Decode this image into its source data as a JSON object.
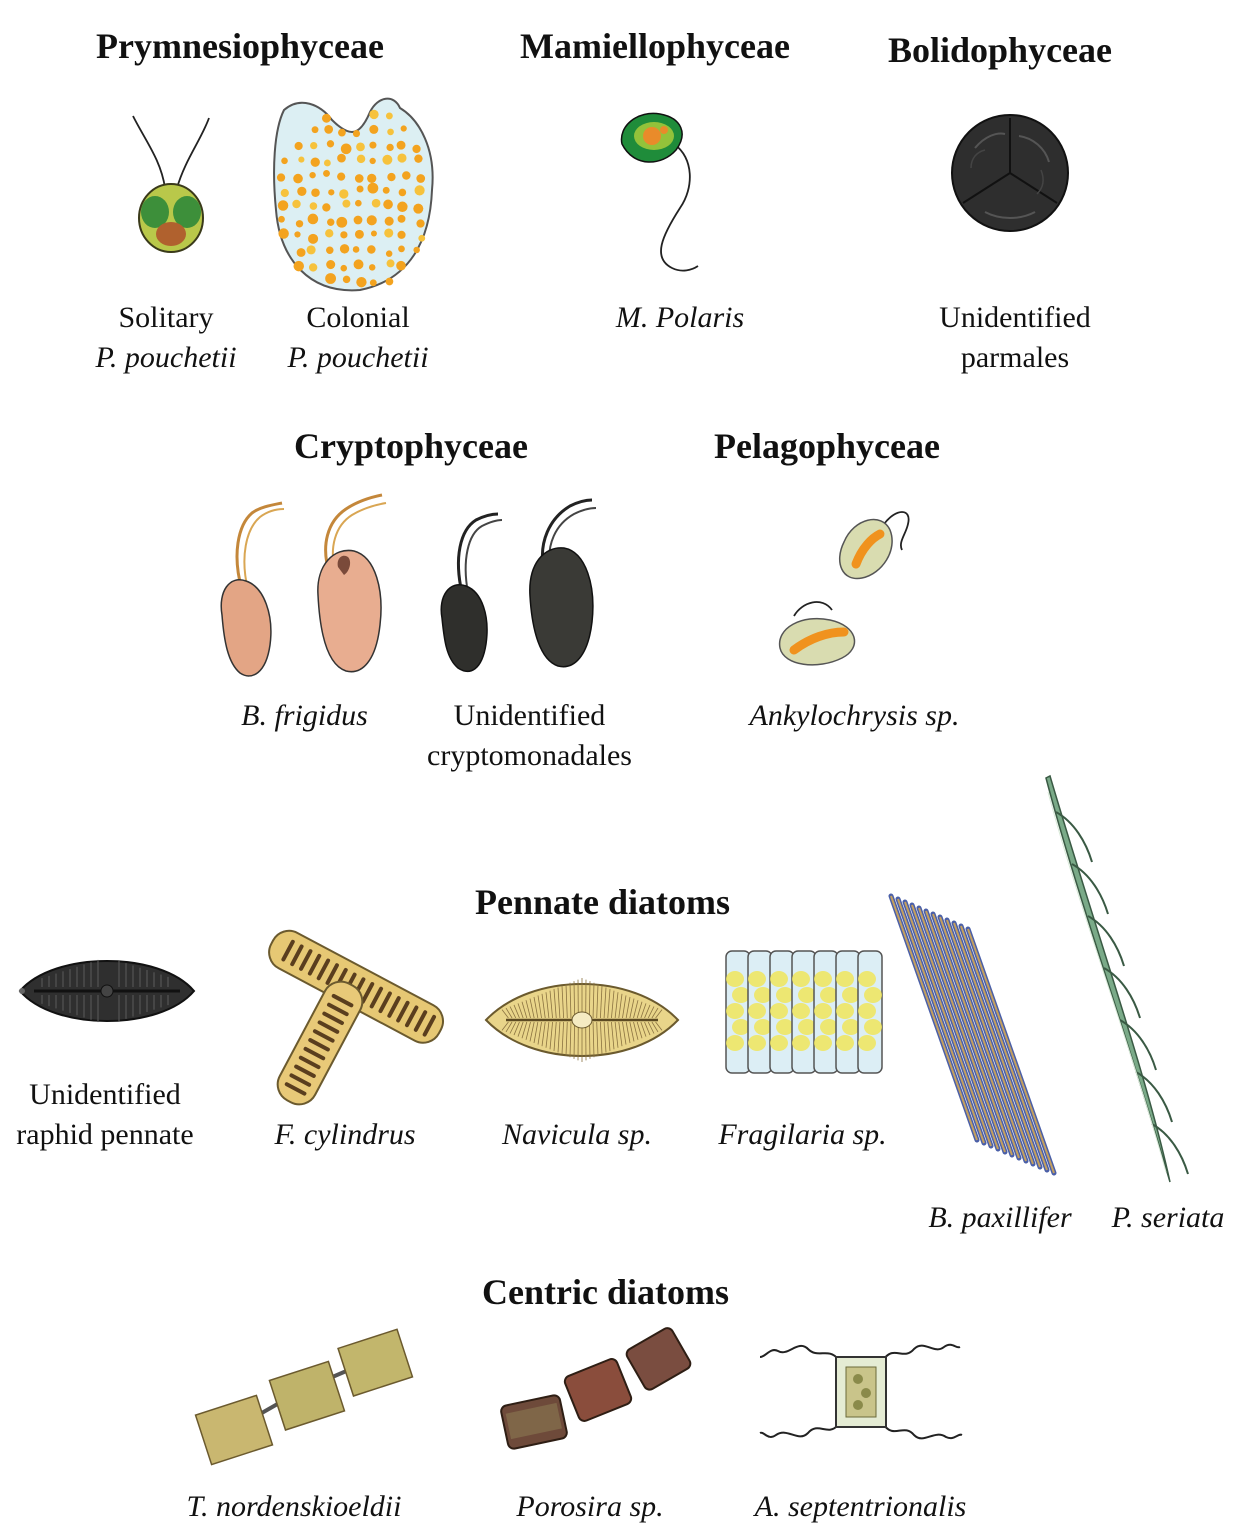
{
  "headings": {
    "prymnesiophyceae": "Prymnesiophyceae",
    "mamiellophyceae": "Mamiellophyceae",
    "bolidophyceae": "Bolidophyceae",
    "cryptophyceae": "Cryptophyceae",
    "pelagophyceae": "Pelagophyceae",
    "pennate": "Pennate diatoms",
    "centric": "Centric diatoms"
  },
  "labels": {
    "solitary_1": "Solitary",
    "solitary_2": "P. pouchetii",
    "colonial_1": "Colonial",
    "colonial_2": "P. pouchetii",
    "mpolaris": "M. Polaris",
    "parmales_1": "Unidentified",
    "parmales_2": "parmales",
    "bfrigidus": "B. frigidus",
    "crypto_1": "Unidentified",
    "crypto_2": "cryptomonadales",
    "ankylo": "Ankylochrysis sp.",
    "raphid_1": "Unidentified",
    "raphid_2": "raphid pennate",
    "fcyl": "F. cylindrus",
    "navicula": "Navicula sp.",
    "fragilaria": "Fragilaria sp.",
    "bpax": "B. paxillifer",
    "pser": "P. seriata",
    "tnord": "T. nordenskioeldii",
    "porosira": "Porosira sp.",
    "asept": "A. septentrionalis"
  },
  "colors": {
    "text": "#111111",
    "dark_cell": "#2e2e2e",
    "green": "#2f9a3c",
    "orange": "#f3a31f",
    "peach": "#e3a585",
    "gold": "#e6c874",
    "diatom_green": "#5f9a72"
  }
}
